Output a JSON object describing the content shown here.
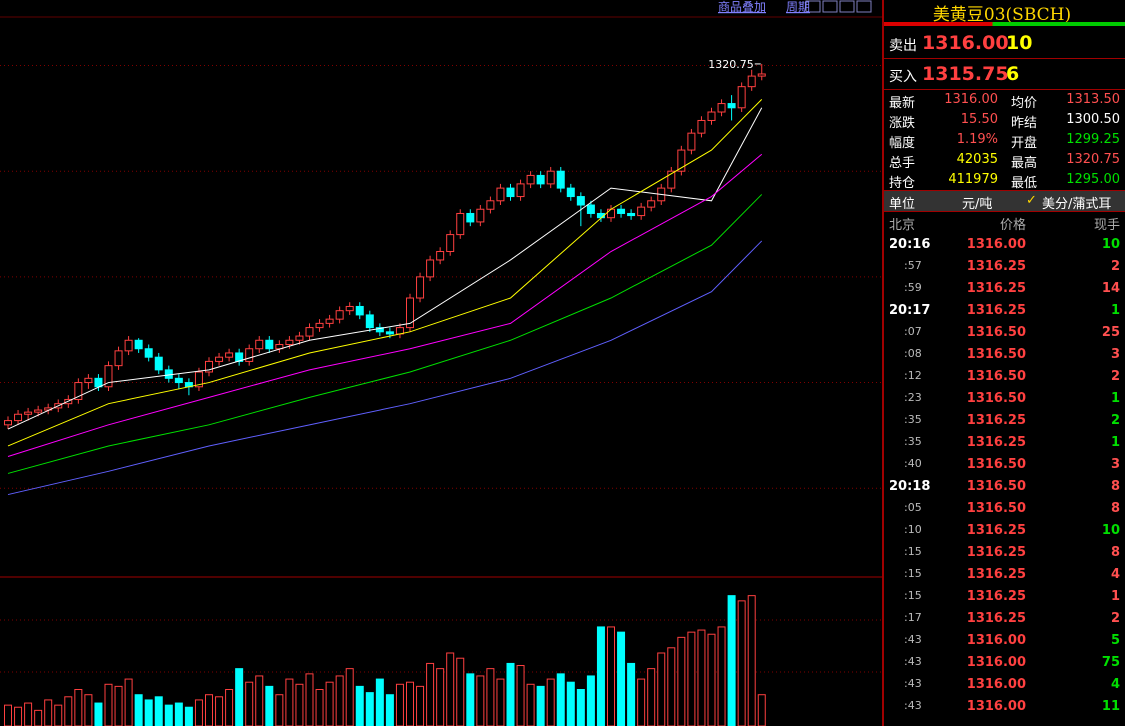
{
  "toolbar": {
    "links": [
      "商品叠加",
      "周期"
    ]
  },
  "chart": {
    "high_label": "1320.75",
    "ylim": [
      1078,
      1351
    ],
    "grid_levels": [
      1120,
      1170,
      1220,
      1270,
      1320
    ],
    "vlim": [
      0,
      140
    ],
    "candles": [
      [
        1150,
        1154,
        1148,
        1152
      ],
      [
        1152,
        1157,
        1150,
        1155
      ],
      [
        1155,
        1158,
        1152,
        1156
      ],
      [
        1156,
        1159,
        1154,
        1157
      ],
      [
        1157,
        1160,
        1155,
        1158
      ],
      [
        1158,
        1162,
        1156,
        1160
      ],
      [
        1160,
        1164,
        1158,
        1162
      ],
      [
        1162,
        1172,
        1160,
        1170
      ],
      [
        1170,
        1174,
        1167,
        1172
      ],
      [
        1172,
        1174,
        1166,
        1168
      ],
      [
        1168,
        1180,
        1166,
        1178
      ],
      [
        1178,
        1187,
        1176,
        1185
      ],
      [
        1185,
        1192,
        1183,
        1190
      ],
      [
        1190,
        1191,
        1184,
        1186
      ],
      [
        1186,
        1188,
        1180,
        1182
      ],
      [
        1182,
        1184,
        1174,
        1176
      ],
      [
        1176,
        1178,
        1170,
        1172
      ],
      [
        1172,
        1174,
        1167,
        1170
      ],
      [
        1170,
        1172,
        1164,
        1168
      ],
      [
        1168,
        1177,
        1166,
        1175
      ],
      [
        1175,
        1182,
        1173,
        1180
      ],
      [
        1180,
        1184,
        1178,
        1182
      ],
      [
        1182,
        1186,
        1180,
        1184
      ],
      [
        1184,
        1186,
        1178,
        1180
      ],
      [
        1180,
        1188,
        1178,
        1186
      ],
      [
        1186,
        1192,
        1184,
        1190
      ],
      [
        1190,
        1192,
        1184,
        1186
      ],
      [
        1186,
        1190,
        1184,
        1188
      ],
      [
        1188,
        1192,
        1186,
        1190
      ],
      [
        1190,
        1194,
        1188,
        1192
      ],
      [
        1192,
        1198,
        1190,
        1196
      ],
      [
        1196,
        1200,
        1194,
        1198
      ],
      [
        1198,
        1202,
        1196,
        1200
      ],
      [
        1200,
        1206,
        1198,
        1204
      ],
      [
        1204,
        1208,
        1202,
        1206
      ],
      [
        1206,
        1208,
        1200,
        1202
      ],
      [
        1202,
        1204,
        1194,
        1196
      ],
      [
        1196,
        1198,
        1192,
        1194
      ],
      [
        1194,
        1196,
        1191,
        1193
      ],
      [
        1193,
        1198,
        1191,
        1196
      ],
      [
        1196,
        1212,
        1194,
        1210
      ],
      [
        1210,
        1222,
        1208,
        1220
      ],
      [
        1220,
        1230,
        1218,
        1228
      ],
      [
        1228,
        1234,
        1226,
        1232
      ],
      [
        1232,
        1242,
        1230,
        1240
      ],
      [
        1240,
        1252,
        1238,
        1250
      ],
      [
        1250,
        1252,
        1244,
        1246
      ],
      [
        1246,
        1254,
        1244,
        1252
      ],
      [
        1252,
        1258,
        1250,
        1256
      ],
      [
        1256,
        1264,
        1254,
        1262
      ],
      [
        1262,
        1264,
        1256,
        1258
      ],
      [
        1258,
        1266,
        1256,
        1264
      ],
      [
        1264,
        1270,
        1262,
        1268
      ],
      [
        1268,
        1270,
        1262,
        1264
      ],
      [
        1264,
        1272,
        1262,
        1270
      ],
      [
        1270,
        1272,
        1260,
        1262
      ],
      [
        1262,
        1264,
        1256,
        1258
      ],
      [
        1258,
        1260,
        1244,
        1254
      ],
      [
        1254,
        1256,
        1248,
        1250
      ],
      [
        1250,
        1252,
        1246,
        1248
      ],
      [
        1248,
        1254,
        1246,
        1252
      ],
      [
        1252,
        1254,
        1248,
        1250
      ],
      [
        1250,
        1252,
        1247,
        1249
      ],
      [
        1249,
        1255,
        1247,
        1253
      ],
      [
        1253,
        1258,
        1251,
        1256
      ],
      [
        1256,
        1264,
        1254,
        1262
      ],
      [
        1262,
        1272,
        1260,
        1270
      ],
      [
        1270,
        1282,
        1268,
        1280
      ],
      [
        1280,
        1290,
        1278,
        1288
      ],
      [
        1288,
        1296,
        1286,
        1294
      ],
      [
        1294,
        1300,
        1292,
        1298
      ],
      [
        1298,
        1304,
        1296,
        1302
      ],
      [
        1302,
        1306,
        1294,
        1300
      ],
      [
        1300,
        1312,
        1298,
        1310
      ],
      [
        1310,
        1318,
        1308,
        1315
      ],
      [
        1315,
        1320.75,
        1313,
        1316
      ]
    ],
    "volumes": [
      20,
      18,
      22,
      15,
      25,
      20,
      28,
      35,
      30,
      22,
      40,
      38,
      45,
      30,
      25,
      28,
      20,
      22,
      18,
      25,
      30,
      28,
      35,
      55,
      42,
      48,
      38,
      30,
      45,
      40,
      50,
      35,
      42,
      48,
      55,
      38,
      32,
      45,
      30,
      40,
      42,
      38,
      60,
      55,
      70,
      65,
      50,
      48,
      55,
      45,
      60,
      58,
      40,
      38,
      45,
      50,
      42,
      35,
      48,
      95,
      95,
      90,
      60,
      45,
      55,
      70,
      75,
      85,
      90,
      92,
      88,
      95,
      125,
      120,
      125,
      30
    ],
    "ma_x": [
      0,
      10,
      20,
      30,
      40,
      50,
      60,
      70,
      75
    ],
    "ma_lines": [
      {
        "color": "#ffffff",
        "values": [
          1148,
          1170,
          1176,
          1190,
          1198,
          1228,
          1262,
          1256,
          1300
        ]
      },
      {
        "color": "#ffff00",
        "values": [
          1140,
          1160,
          1170,
          1184,
          1194,
          1210,
          1252,
          1280,
          1304
        ]
      },
      {
        "color": "#ff00ff",
        "values": [
          1135,
          1150,
          1163,
          1176,
          1186,
          1198,
          1232,
          1258,
          1278
        ]
      },
      {
        "color": "#00e000",
        "values": [
          1127,
          1140,
          1150,
          1163,
          1175,
          1190,
          1210,
          1235,
          1259
        ]
      },
      {
        "color": "#6060ff",
        "values": [
          1117,
          1128,
          1140,
          1150,
          1160,
          1172,
          1190,
          1213,
          1237
        ]
      }
    ]
  },
  "panel": {
    "title": "美黄豆03(SBCH)",
    "ask": {
      "label": "卖出",
      "price": "1316.00",
      "size": "10"
    },
    "bid": {
      "label": "买入",
      "price": "1315.75",
      "size": "6"
    },
    "stats": [
      [
        {
          "label": "最新",
          "value": "1316.00",
          "color": "#ff5050"
        },
        {
          "label": "均价",
          "value": "1313.50",
          "color": "#ff5050"
        }
      ],
      [
        {
          "label": "涨跌",
          "value": "15.50",
          "color": "#ff5050"
        },
        {
          "label": "昨结",
          "value": "1300.50",
          "color": "#ffffff"
        }
      ],
      [
        {
          "label": "幅度",
          "value": "1.19%",
          "color": "#ff5050"
        },
        {
          "label": "开盘",
          "value": "1299.25",
          "color": "#00e000"
        }
      ],
      [
        {
          "label": "总手",
          "value": "42035",
          "color": "#ffff00"
        },
        {
          "label": "最高",
          "value": "1320.75",
          "color": "#ff5050"
        }
      ],
      [
        {
          "label": "持仓",
          "value": "411979",
          "color": "#ffff00"
        },
        {
          "label": "最低",
          "value": "1295.00",
          "color": "#00e000"
        }
      ]
    ],
    "unit": {
      "label": "单位",
      "value": "元/吨",
      "alt": "美分/蒲式耳"
    },
    "ticks_header": [
      "北京",
      "价格",
      "现手"
    ],
    "ticks": [
      {
        "time": "20:16",
        "price": "1316.00",
        "qty": "10",
        "color": "#00e000"
      },
      {
        "time": ":57",
        "price": "1316.25",
        "qty": "2",
        "color": "#ff5050"
      },
      {
        "time": ":59",
        "price": "1316.25",
        "qty": "14",
        "color": "#ff5050"
      },
      {
        "time": "20:17",
        "price": "1316.25",
        "qty": "1",
        "color": "#00e000"
      },
      {
        "time": ":07",
        "price": "1316.50",
        "qty": "25",
        "color": "#ff5050"
      },
      {
        "time": ":08",
        "price": "1316.50",
        "qty": "3",
        "color": "#ff5050"
      },
      {
        "time": ":12",
        "price": "1316.50",
        "qty": "2",
        "color": "#ff5050"
      },
      {
        "time": ":23",
        "price": "1316.50",
        "qty": "1",
        "color": "#00e000"
      },
      {
        "time": ":35",
        "price": "1316.25",
        "qty": "2",
        "color": "#00e000"
      },
      {
        "time": ":35",
        "price": "1316.25",
        "qty": "1",
        "color": "#00e000"
      },
      {
        "time": ":40",
        "price": "1316.50",
        "qty": "3",
        "color": "#ff5050"
      },
      {
        "time": "20:18",
        "price": "1316.50",
        "qty": "8",
        "color": "#ff5050"
      },
      {
        "time": ":05",
        "price": "1316.50",
        "qty": "8",
        "color": "#ff5050"
      },
      {
        "time": ":10",
        "price": "1316.25",
        "qty": "10",
        "color": "#00e000"
      },
      {
        "time": ":15",
        "price": "1316.25",
        "qty": "8",
        "color": "#ff5050"
      },
      {
        "time": ":15",
        "price": "1316.25",
        "qty": "4",
        "color": "#ff5050"
      },
      {
        "time": ":15",
        "price": "1316.25",
        "qty": "1",
        "color": "#ff5050"
      },
      {
        "time": ":17",
        "price": "1316.25",
        "qty": "2",
        "color": "#ff5050"
      },
      {
        "time": ":43",
        "price": "1316.00",
        "qty": "5",
        "color": "#00e000"
      },
      {
        "time": ":43",
        "price": "1316.00",
        "qty": "75",
        "color": "#00e000"
      },
      {
        "time": ":43",
        "price": "1316.00",
        "qty": "4",
        "color": "#00e000"
      },
      {
        "time": ":43",
        "price": "1316.00",
        "qty": "11",
        "color": "#00e000"
      }
    ]
  }
}
